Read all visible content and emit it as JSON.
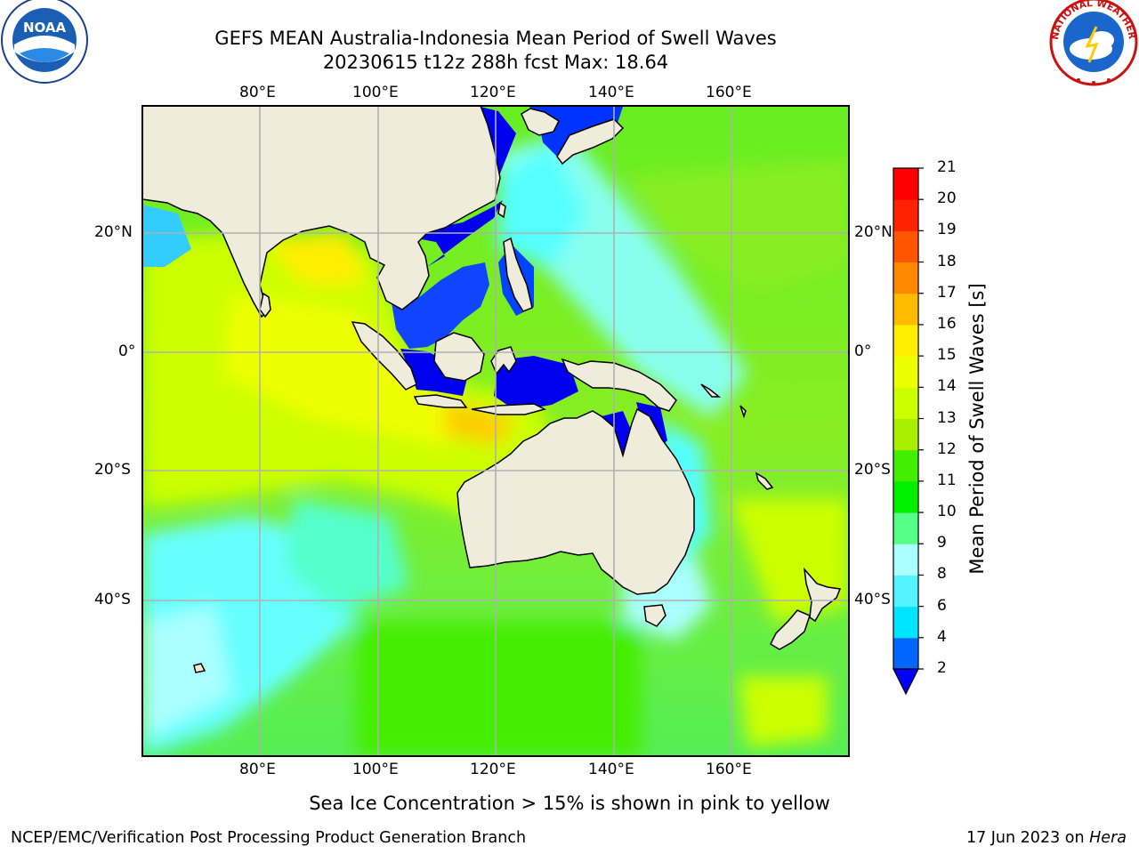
{
  "title_line1": "GEFS MEAN Australia-Indonesia Mean Period of Swell Waves",
  "title_line2": "20230615 t12z 288h fcst   Max: 18.64",
  "logos": {
    "left": "NOAA",
    "right_ring": "NATIONAL WEATHER SERVICE"
  },
  "map": {
    "lon_labels": [
      "80°E",
      "100°E",
      "120°E",
      "140°E",
      "160°E"
    ],
    "lat_labels": [
      "20°N",
      "0°",
      "20°S",
      "40°S"
    ],
    "grid": true
  },
  "colorbar": {
    "label": "Mean Period of Swell Waves [s]",
    "ticks": [
      "2",
      "4",
      "6",
      "8",
      "9",
      "10",
      "11",
      "12",
      "13",
      "14",
      "15",
      "16",
      "17",
      "18",
      "19",
      "20",
      "21"
    ],
    "colors": [
      "#0066ff",
      "#00e5ff",
      "#55f2ff",
      "#aaffff",
      "#55ff88",
      "#00ee00",
      "#44ee00",
      "#aaee00",
      "#ccff00",
      "#eeff00",
      "#ffee00",
      "#ffbb00",
      "#ff8800",
      "#ff5500",
      "#ff2200",
      "#ff0000"
    ],
    "under_color": "#0000ff"
  },
  "note": "Sea Ice Concentration > 15% is shown in pink to yellow",
  "footer_left": "NCEP/EMC/Verification Post Processing Product Generation Branch",
  "footer_right_date": "17 Jun 2023 on ",
  "footer_right_machine": "Hera"
}
